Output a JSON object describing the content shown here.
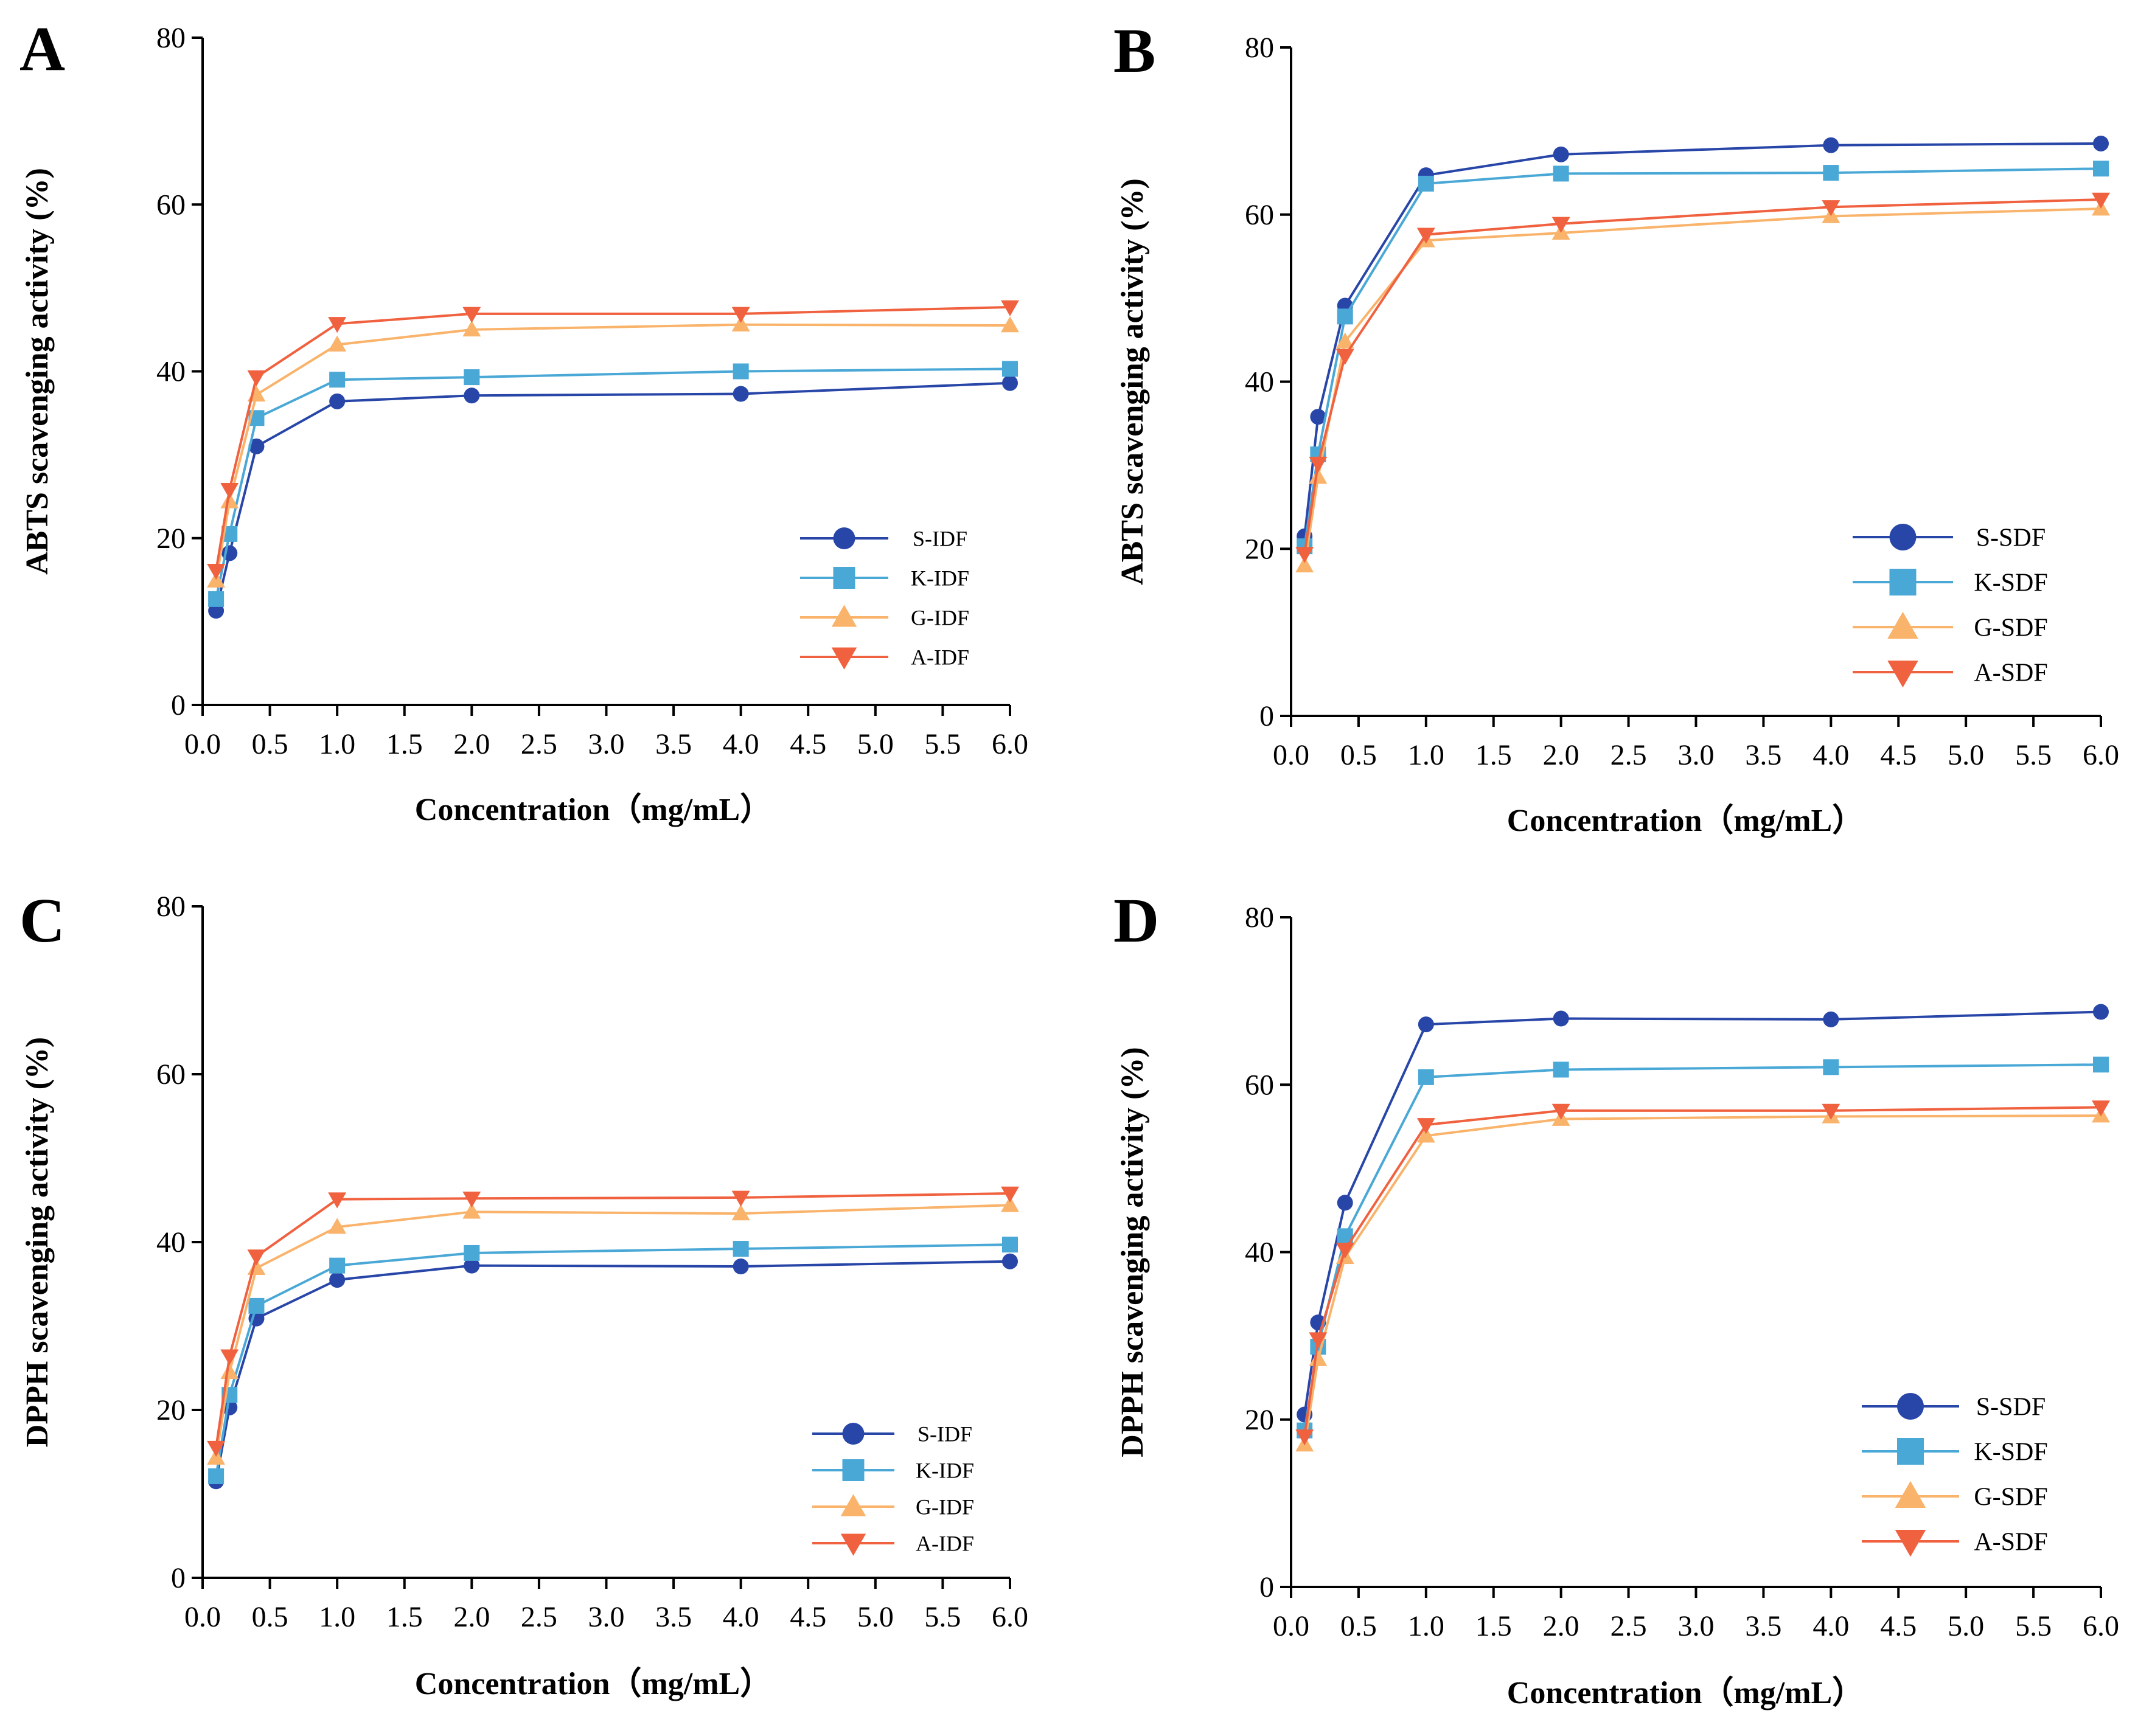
{
  "colors": {
    "S": "#2846a8",
    "K": "#4aa8d6",
    "G": "#f9b36b",
    "A": "#f0613f",
    "axis": "#000000"
  },
  "chart_data": [
    {
      "panel_label": "A",
      "type": "line",
      "xlabel": "Concentration（mg/mL）",
      "ylabel": "ABTS scavenging activity (%)",
      "xlim": [
        0,
        6
      ],
      "ylim": [
        0,
        80
      ],
      "xticks": [
        "0.0",
        "0.5",
        "1.0",
        "1.5",
        "2.0",
        "2.5",
        "3.0",
        "3.5",
        "4.0",
        "4.5",
        "5.0",
        "5.5",
        "6.0"
      ],
      "yticks": [
        "0",
        "20",
        "40",
        "60",
        "80"
      ],
      "x": [
        0.1,
        0.2,
        0.4,
        1.0,
        2.0,
        4.0,
        6.0
      ],
      "legend_position": "bottom-right",
      "series": [
        {
          "name": "S-IDF",
          "marker": "circle",
          "color_key": "S",
          "values": [
            11.3,
            18.2,
            31.0,
            36.4,
            37.1,
            37.3,
            38.6
          ]
        },
        {
          "name": "K-IDF",
          "marker": "square",
          "color_key": "K",
          "values": [
            12.7,
            20.5,
            34.4,
            39.0,
            39.3,
            40.0,
            40.3
          ]
        },
        {
          "name": "G-IDF",
          "marker": "triangle-up",
          "color_key": "G",
          "values": [
            14.9,
            24.4,
            37.2,
            43.2,
            45.0,
            45.6,
            45.5
          ]
        },
        {
          "name": "A-IDF",
          "marker": "triangle-down",
          "color_key": "A",
          "values": [
            16.1,
            25.8,
            39.3,
            45.7,
            46.9,
            46.9,
            47.7
          ]
        }
      ]
    },
    {
      "panel_label": "B",
      "type": "line",
      "xlabel": "Concentration（mg/mL）",
      "ylabel": "ABTS scavenging activity (%)",
      "xlim": [
        0,
        6
      ],
      "ylim": [
        0,
        80
      ],
      "xticks": [
        "0.0",
        "0.5",
        "1.0",
        "1.5",
        "2.0",
        "2.5",
        "3.0",
        "3.5",
        "4.0",
        "4.5",
        "5.0",
        "5.5",
        "6.0"
      ],
      "yticks": [
        "0",
        "20",
        "40",
        "60",
        "80"
      ],
      "x": [
        0.1,
        0.2,
        0.4,
        1.0,
        2.0,
        4.0,
        6.0
      ],
      "legend_position": "bottom-right",
      "series": [
        {
          "name": "S-SDF",
          "marker": "circle",
          "color_key": "S",
          "values": [
            21.5,
            35.8,
            49.1,
            64.7,
            67.2,
            68.3,
            68.5
          ]
        },
        {
          "name": "K-SDF",
          "marker": "square",
          "color_key": "K",
          "values": [
            20.3,
            31.3,
            47.8,
            63.7,
            64.9,
            65.0,
            65.5
          ]
        },
        {
          "name": "G-SDF",
          "marker": "triangle-up",
          "color_key": "G",
          "values": [
            18.0,
            28.6,
            44.8,
            56.9,
            57.8,
            59.8,
            60.7
          ]
        },
        {
          "name": "A-SDF",
          "marker": "triangle-down",
          "color_key": "A",
          "values": [
            19.4,
            30.2,
            43.1,
            57.6,
            58.9,
            60.9,
            61.8
          ]
        }
      ]
    },
    {
      "panel_label": "C",
      "type": "line",
      "xlabel": "Concentration（mg/mL）",
      "ylabel": "DPPH scavenging activity (%)",
      "xlim": [
        0,
        6
      ],
      "ylim": [
        0,
        80
      ],
      "xticks": [
        "0.0",
        "0.5",
        "1.0",
        "1.5",
        "2.0",
        "2.5",
        "3.0",
        "3.5",
        "4.0",
        "4.5",
        "5.0",
        "5.5",
        "6.0"
      ],
      "yticks": [
        "0",
        "20",
        "40",
        "60",
        "80"
      ],
      "x": [
        0.1,
        0.2,
        0.4,
        1.0,
        2.0,
        4.0,
        6.0
      ],
      "legend_position": "bottom-right",
      "series": [
        {
          "name": "S-IDF",
          "marker": "circle",
          "color_key": "S",
          "values": [
            11.5,
            20.3,
            30.9,
            35.5,
            37.2,
            37.1,
            37.7
          ]
        },
        {
          "name": "K-IDF",
          "marker": "square",
          "color_key": "K",
          "values": [
            12.1,
            21.8,
            32.4,
            37.2,
            38.7,
            39.2,
            39.7
          ]
        },
        {
          "name": "G-IDF",
          "marker": "triangle-up",
          "color_key": "G",
          "values": [
            14.3,
            24.5,
            36.9,
            41.8,
            43.6,
            43.4,
            44.4
          ]
        },
        {
          "name": "A-IDF",
          "marker": "triangle-down",
          "color_key": "A",
          "values": [
            15.5,
            26.4,
            38.3,
            45.1,
            45.2,
            45.3,
            45.8
          ]
        }
      ]
    },
    {
      "panel_label": "D",
      "type": "line",
      "xlabel": "Concentration（mg/mL）",
      "ylabel": "DPPH scavenging activity (%)",
      "xlim": [
        0,
        6
      ],
      "ylim": [
        0,
        80
      ],
      "xticks": [
        "0.0",
        "0.5",
        "1.0",
        "1.5",
        "2.0",
        "2.5",
        "3.0",
        "3.5",
        "4.0",
        "4.5",
        "5.0",
        "5.5",
        "6.0"
      ],
      "yticks": [
        "0",
        "20",
        "40",
        "60",
        "80"
      ],
      "x": [
        0.1,
        0.2,
        0.4,
        1.0,
        2.0,
        4.0,
        6.0
      ],
      "legend_position": "bottom-right",
      "series": [
        {
          "name": "S-SDF",
          "marker": "circle",
          "color_key": "S",
          "values": [
            20.6,
            31.6,
            45.9,
            67.2,
            67.9,
            67.8,
            68.7
          ]
        },
        {
          "name": "K-SDF",
          "marker": "square",
          "color_key": "K",
          "values": [
            18.7,
            28.7,
            41.9,
            60.9,
            61.8,
            62.1,
            62.4
          ]
        },
        {
          "name": "G-SDF",
          "marker": "triangle-up",
          "color_key": "G",
          "values": [
            17.0,
            27.2,
            39.4,
            53.9,
            55.9,
            56.2,
            56.3
          ]
        },
        {
          "name": "A-SDF",
          "marker": "triangle-down",
          "color_key": "A",
          "values": [
            18.0,
            29.6,
            40.3,
            55.2,
            56.9,
            56.9,
            57.3
          ]
        }
      ]
    }
  ]
}
